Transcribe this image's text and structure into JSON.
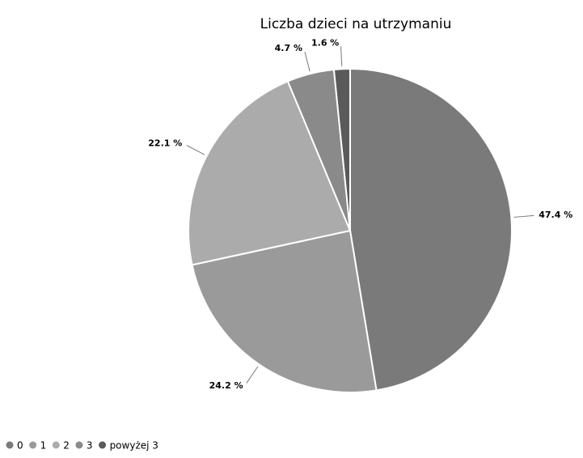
{
  "chart_data": {
    "type": "pie",
    "title": "Liczba dzieci na utrzymaniu",
    "categories": [
      "0",
      "1",
      "2",
      "3",
      "powyżej 3"
    ],
    "values": [
      47.4,
      24.2,
      22.1,
      4.7,
      1.6
    ],
    "value_labels": [
      "47.4 %",
      "24.2 %",
      "22.1 %",
      "4.7 %",
      "1.6 %"
    ],
    "colors": [
      "#7a7a7a",
      "#9a9a9a",
      "#ababab",
      "#8a8a8a",
      "#5a5a5a"
    ],
    "legend": "bottom-left"
  }
}
